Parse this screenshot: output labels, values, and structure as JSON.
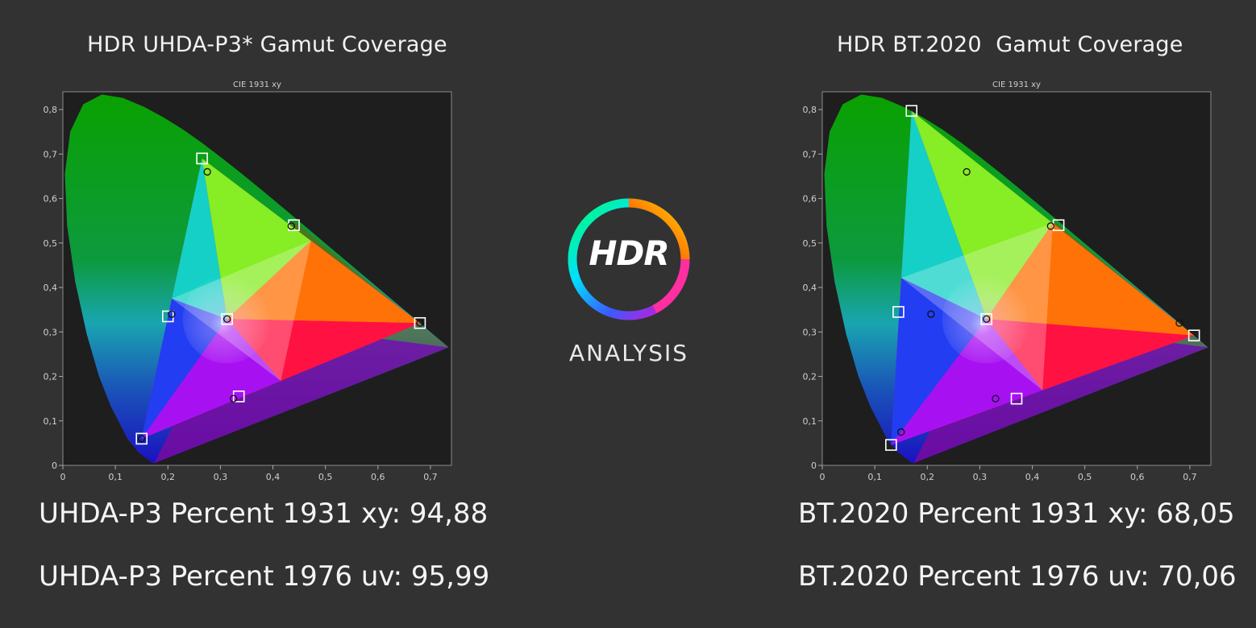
{
  "panels": [
    {
      "title": "HDR UHDA-P3* Gamut Coverage",
      "stats": [
        "UHDA-P3 Percent 1931 xy: 94,88",
        "UHDA-P3 Percent 1976 uv: 95,99"
      ]
    },
    {
      "title": "HDR BT.2020  Gamut Coverage",
      "stats": [
        "BT.2020 Percent 1931 xy: 68,05",
        "BT.2020 Percent 1976 uv: 70,06"
      ]
    }
  ],
  "logo": {
    "word": "HDR",
    "subtitle": "ANALYSIS"
  },
  "chart_data": [
    {
      "type": "scatter",
      "title": "CIE 1931 xy",
      "xlim": [
        0,
        0.74
      ],
      "ylim": [
        0,
        0.84
      ],
      "x_ticks": [
        "0",
        "0,1",
        "0,2",
        "0,3",
        "0,4",
        "0,5",
        "0,6",
        "0,7"
      ],
      "y_ticks": [
        "0",
        "0,1",
        "0,2",
        "0,3",
        "0,4",
        "0,5",
        "0,6",
        "0,7",
        "0,8"
      ],
      "target_points": [
        {
          "x": 0.265,
          "y": 0.69
        },
        {
          "x": 0.44,
          "y": 0.54
        },
        {
          "x": 0.68,
          "y": 0.32
        },
        {
          "x": 0.335,
          "y": 0.155
        },
        {
          "x": 0.15,
          "y": 0.06
        },
        {
          "x": 0.2,
          "y": 0.335
        },
        {
          "x": 0.3127,
          "y": 0.329
        }
      ],
      "measured_points": [
        {
          "x": 0.275,
          "y": 0.66
        },
        {
          "x": 0.435,
          "y": 0.538
        },
        {
          "x": 0.68,
          "y": 0.32
        },
        {
          "x": 0.325,
          "y": 0.15
        },
        {
          "x": 0.15,
          "y": 0.06
        },
        {
          "x": 0.207,
          "y": 0.34
        },
        {
          "x": 0.3127,
          "y": 0.329
        }
      ],
      "gamut_triangle": [
        [
          0.265,
          0.69
        ],
        [
          0.68,
          0.32
        ],
        [
          0.15,
          0.06
        ]
      ]
    },
    {
      "type": "scatter",
      "title": "CIE 1931 xy",
      "xlim": [
        0,
        0.74
      ],
      "ylim": [
        0,
        0.84
      ],
      "x_ticks": [
        "0",
        "0,1",
        "0,2",
        "0,3",
        "0,4",
        "0,5",
        "0,6",
        "0,7"
      ],
      "y_ticks": [
        "0",
        "0,1",
        "0,2",
        "0,3",
        "0,4",
        "0,5",
        "0,6",
        "0,7",
        "0,8"
      ],
      "target_points": [
        {
          "x": 0.17,
          "y": 0.797
        },
        {
          "x": 0.45,
          "y": 0.54
        },
        {
          "x": 0.708,
          "y": 0.292
        },
        {
          "x": 0.37,
          "y": 0.15
        },
        {
          "x": 0.131,
          "y": 0.046
        },
        {
          "x": 0.145,
          "y": 0.345
        },
        {
          "x": 0.3127,
          "y": 0.329
        }
      ],
      "measured_points": [
        {
          "x": 0.275,
          "y": 0.66
        },
        {
          "x": 0.435,
          "y": 0.538
        },
        {
          "x": 0.68,
          "y": 0.32
        },
        {
          "x": 0.33,
          "y": 0.15
        },
        {
          "x": 0.15,
          "y": 0.075
        },
        {
          "x": 0.207,
          "y": 0.34
        },
        {
          "x": 0.3127,
          "y": 0.329
        }
      ],
      "gamut_triangle": [
        [
          0.17,
          0.797
        ],
        [
          0.708,
          0.292
        ],
        [
          0.131,
          0.046
        ]
      ]
    }
  ]
}
